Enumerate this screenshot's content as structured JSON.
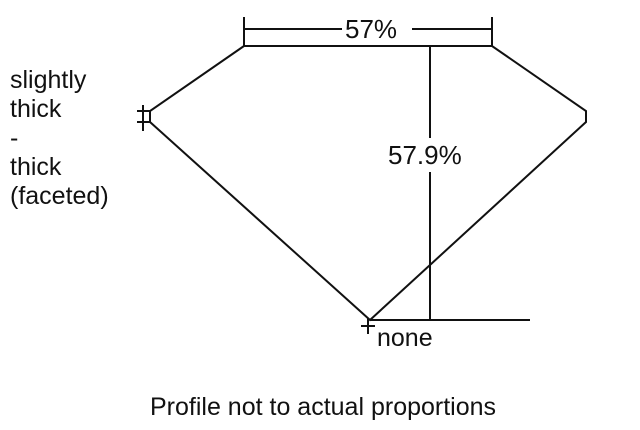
{
  "table_label": "57%",
  "depth_label": "57.9%",
  "girdle_label": [
    "slightly",
    "thick",
    "-",
    "thick",
    "(faceted)"
  ],
  "culet_label": "none",
  "caption": "Profile not to actual proportions",
  "line_color": "#111111"
}
